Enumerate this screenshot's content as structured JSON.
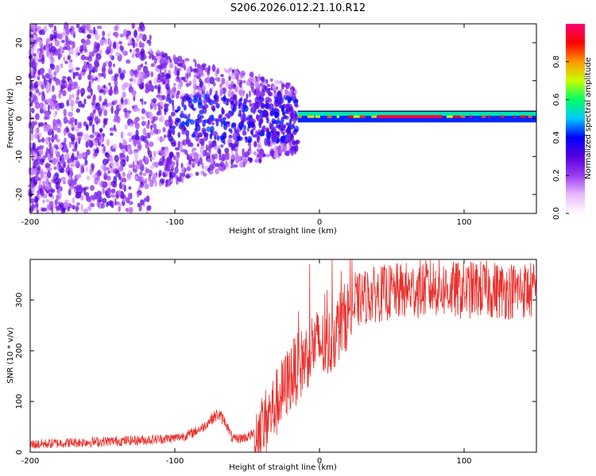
{
  "title": "S206.2026.012.21.10.R12",
  "chart_data": [
    {
      "type": "heatmap",
      "xlabel": "Height of straight line (km)",
      "ylabel": "Frequency (Hz)",
      "xlim": [
        -200,
        150
      ],
      "ylim": [
        -25,
        25
      ],
      "xticks": [
        -200,
        -100,
        0,
        100
      ],
      "xtick_labels": [
        "-200",
        "-100",
        "0",
        "100"
      ],
      "yticks": [
        -20,
        -10,
        0,
        10,
        20
      ],
      "ytick_labels": [
        "-20",
        "-10",
        "0",
        "10",
        "20"
      ],
      "colorbar": {
        "label": "Normalized spectral amplitude",
        "range": [
          0,
          1
        ],
        "ticks": [
          0.0,
          0.2,
          0.4,
          0.6,
          0.8
        ],
        "tick_labels": [
          "0.0",
          "0.2",
          "0.4",
          "0.6",
          "0.8"
        ],
        "colors": [
          "#ffffff",
          "#e8b8ff",
          "#9a3cf0",
          "#5500dd",
          "#0000ff",
          "#00c8ff",
          "#00ff64",
          "#c8ff00",
          "#ff9600",
          "#ff0000",
          "#ff0078"
        ]
      },
      "features": [
        {
          "description": "diffuse noise field",
          "x_range": [
            -200,
            -15
          ],
          "freq_range": [
            -25,
            25
          ],
          "amplitude": 0.1
        },
        {
          "description": "concentrated signal band",
          "x_range": [
            -15,
            150
          ],
          "center_freq_hz": 0.5,
          "half_width_hz": 1.5,
          "amplitude": 0.45
        },
        {
          "description": "peak amplitude segment",
          "x_range": [
            40,
            85
          ],
          "freq_hz": 0.5,
          "amplitude": 0.95
        }
      ]
    },
    {
      "type": "line",
      "xlabel": "Height of straight line (km)",
      "ylabel": "SNR (10 * v/v)",
      "xlim": [
        -200,
        150
      ],
      "ylim": [
        0,
        380
      ],
      "xticks": [
        -200,
        -100,
        0,
        100
      ],
      "xtick_labels": [
        "-200",
        "-100",
        "0",
        "100"
      ],
      "yticks": [
        0,
        100,
        200,
        300
      ],
      "ytick_labels": [
        "0",
        "100",
        "200",
        "300"
      ],
      "color": "#e8302c",
      "series": [
        {
          "name": "SNR",
          "x": [
            -200,
            -180,
            -160,
            -140,
            -120,
            -100,
            -90,
            -80,
            -75,
            -70,
            -65,
            -60,
            -50,
            -40,
            -35,
            -30,
            -25,
            -20,
            -15,
            -10,
            -5,
            0,
            5,
            10,
            15,
            20,
            25,
            30,
            40,
            50,
            60,
            70,
            80,
            90,
            100,
            110,
            120,
            130,
            140,
            150
          ],
          "y": [
            15,
            18,
            20,
            22,
            24,
            28,
            35,
            50,
            65,
            75,
            60,
            25,
            30,
            45,
            70,
            95,
            120,
            150,
            165,
            185,
            210,
            215,
            205,
            230,
            255,
            275,
            295,
            305,
            312,
            315,
            318,
            322,
            325,
            320,
            318,
            322,
            320,
            318,
            320,
            318
          ]
        }
      ]
    }
  ]
}
